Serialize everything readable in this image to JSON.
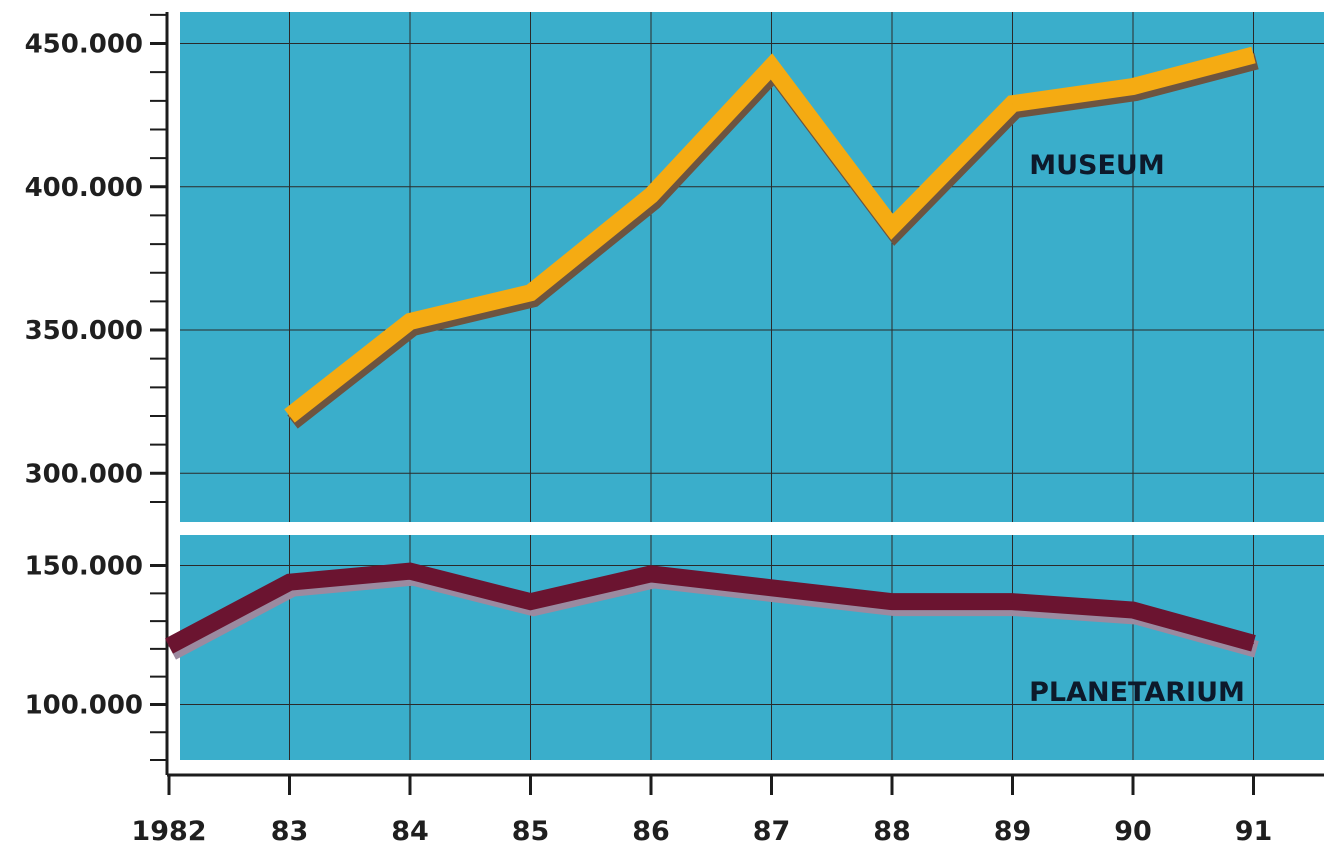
{
  "chart_data": [
    {
      "type": "line",
      "x": [
        1983,
        1984,
        1985,
        1986,
        1987,
        1988,
        1989,
        1990,
        1991
      ],
      "series": [
        {
          "name": "MUSEUM",
          "values": [
            320000,
            353000,
            363000,
            397000,
            442000,
            386000,
            429000,
            435000,
            446000
          ]
        }
      ],
      "ylim": [
        283000,
        461000
      ],
      "y_ticks": [
        300000,
        350000,
        400000,
        450000
      ],
      "y_tick_labels": [
        "300.000",
        "350.000",
        "400.000",
        "450.000"
      ],
      "grid": true,
      "colors": {
        "background": "#3aaecb",
        "line": "#f5ab12",
        "shadow": "#6d5440"
      }
    },
    {
      "type": "line",
      "x": [
        1982,
        1983,
        1984,
        1985,
        1986,
        1987,
        1988,
        1989,
        1990,
        1991
      ],
      "series": [
        {
          "name": "PLANETARIUM",
          "values": [
            121000,
            144000,
            148000,
            137000,
            147000,
            142000,
            137000,
            137000,
            134000,
            122000
          ]
        }
      ],
      "ylim": [
        80000,
        161000
      ],
      "y_ticks": [
        100000,
        150000
      ],
      "y_tick_labels": [
        "100.000",
        "150.000"
      ],
      "grid": true,
      "colors": {
        "background": "#3aaecb",
        "line": "#6b1430",
        "shadow": "#9b8aa0"
      }
    }
  ],
  "x_axis": {
    "tick_labels": [
      "1982",
      "83",
      "84",
      "85",
      "86",
      "87",
      "88",
      "89",
      "90",
      "91"
    ]
  }
}
